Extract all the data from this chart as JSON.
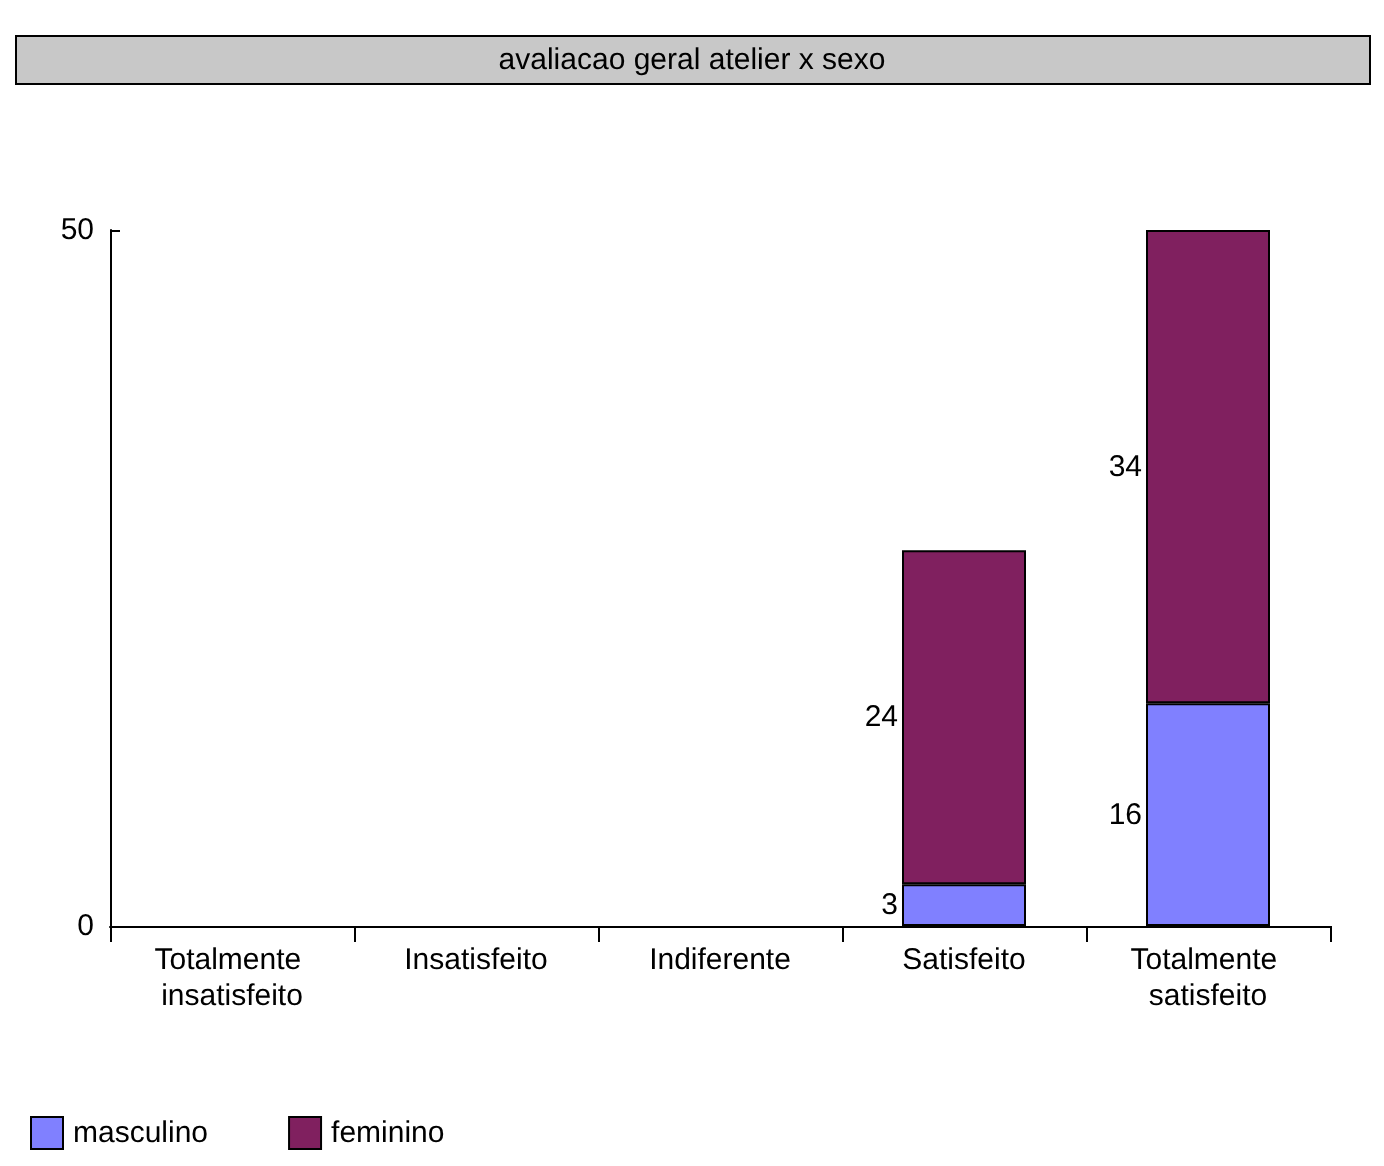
{
  "chart_data": {
    "type": "bar",
    "title": "avaliacao geral atelier x sexo",
    "categories": [
      "Totalmente insatisfeito",
      "Insatisfeito",
      "Indiferente",
      "Satisfeito",
      "Totalmente satisfeito"
    ],
    "series": [
      {
        "name": "masculino",
        "color": "#8080ff",
        "values": [
          null,
          null,
          null,
          3,
          16
        ]
      },
      {
        "name": "feminino",
        "color": "#80205f",
        "values": [
          null,
          null,
          null,
          24,
          34
        ]
      }
    ],
    "stacked": true,
    "data_labels": true,
    "ylim": [
      0,
      50
    ],
    "yticks": [
      0,
      50
    ],
    "grid": false,
    "legend": "bottom left"
  }
}
